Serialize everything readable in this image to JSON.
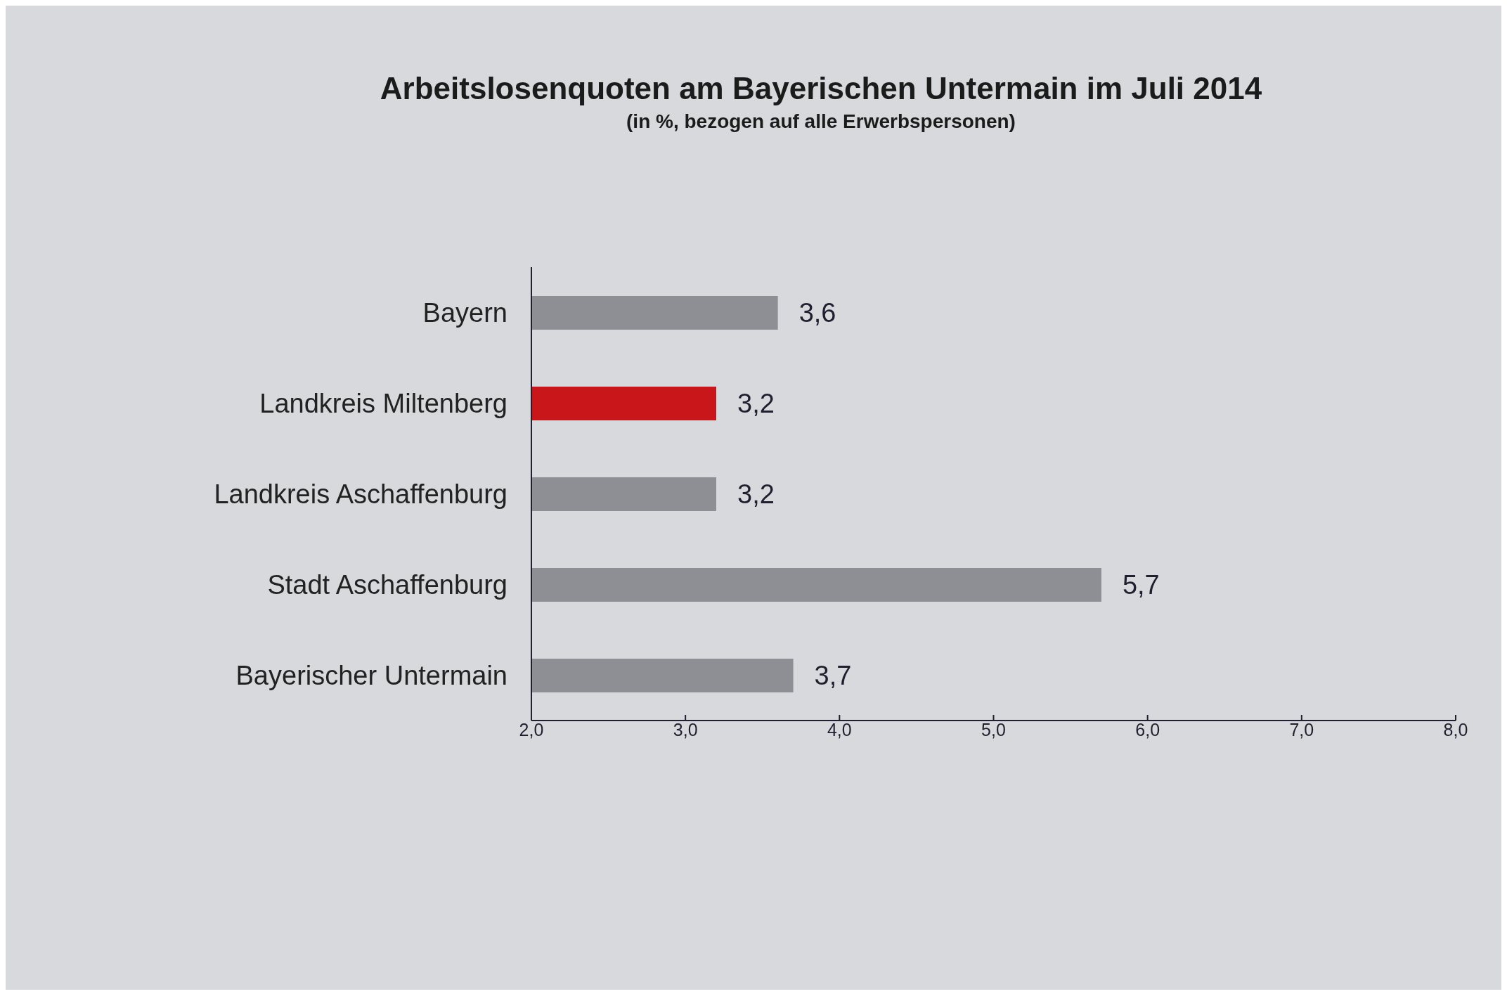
{
  "chart_data": {
    "type": "bar",
    "orientation": "horizontal",
    "title": "Arbeitslosenquoten am Bayerischen Untermain im Juli 2014",
    "subtitle": "(in %, bezogen auf alle Erwerbspersonen)",
    "categories": [
      "Bayern",
      "Landkreis Miltenberg",
      "Landkreis Aschaffenburg",
      "Stadt Aschaffenburg",
      "Bayerischer Untermain"
    ],
    "values": [
      3.6,
      3.2,
      3.2,
      5.7,
      3.7
    ],
    "colors": [
      "#8e8f94",
      "#c8161a",
      "#8e8f94",
      "#8e8f94",
      "#8e8f94"
    ],
    "value_labels": [
      "3,6",
      "3,2",
      "3,2",
      "5,7",
      "3,7"
    ],
    "xlim": [
      2,
      8
    ],
    "xticks": [
      {
        "value": 2,
        "label": "2,0"
      },
      {
        "value": 3,
        "label": "3,0"
      },
      {
        "value": 4,
        "label": "4,0"
      },
      {
        "value": 5,
        "label": "5,0"
      },
      {
        "value": 6,
        "label": "6,0"
      },
      {
        "value": 7,
        "label": "7,0"
      },
      {
        "value": 8,
        "label": "8,0"
      }
    ]
  }
}
